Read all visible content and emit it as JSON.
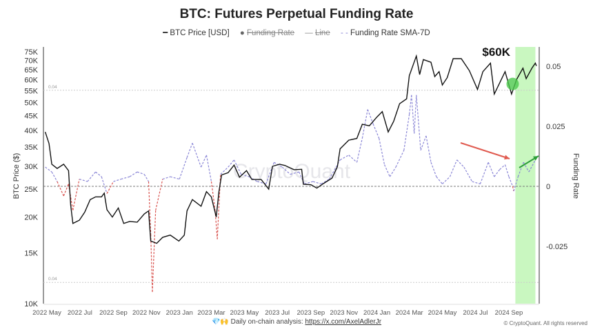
{
  "chart_data": {
    "type": "line",
    "title": "BTC: Futures Perpetual Funding Rate",
    "legend": [
      "BTC Price [USD]",
      "Funding Rate",
      "Line",
      "Funding Rate SMA-7D"
    ],
    "legend_disabled": [
      "Funding Rate",
      "Line"
    ],
    "legend_placement": "top-center",
    "ylabel_left": "BTC Price ($)",
    "ylabel_right": "Funding Rate",
    "y_left_scale": "log",
    "y_left_ticks": [
      "75K",
      "70K",
      "65K",
      "60K",
      "55K",
      "50K",
      "45K",
      "40K",
      "35K",
      "30K",
      "25K",
      "20K",
      "15K",
      "10K"
    ],
    "y_left_tick_values": [
      75000,
      70000,
      65000,
      60000,
      55000,
      50000,
      45000,
      40000,
      35000,
      30000,
      25000,
      20000,
      15000,
      10000
    ],
    "y_right_ticks": [
      "0.05",
      "0.025",
      "0",
      "-0.025"
    ],
    "y_right_tick_values": [
      0.05,
      0.025,
      0,
      -0.025
    ],
    "ref_lines": [
      {
        "label": "0.04",
        "value": 0.04
      },
      {
        "label": "0.04",
        "value": -0.04
      }
    ],
    "x_ticks": [
      "2022 May",
      "2022 Jul",
      "2022 Sep",
      "2022 Nov",
      "2023 Jan",
      "2023 Mar",
      "2023 May",
      "2023 Jul",
      "2023 Sep",
      "2023 Nov",
      "2024 Jan",
      "2024 Mar",
      "2024 May",
      "2024 Jul",
      "2024 Sep"
    ],
    "x_tick_dates": [
      "2022-05-01",
      "2022-07-01",
      "2022-09-01",
      "2022-11-01",
      "2023-01-01",
      "2023-03-01",
      "2023-05-01",
      "2023-07-01",
      "2023-09-01",
      "2023-11-01",
      "2024-01-01",
      "2024-03-01",
      "2024-05-01",
      "2024-07-01",
      "2024-09-01"
    ],
    "annotation": "$60K",
    "highlight_range": [
      "2024-09-13",
      "2024-10-20"
    ],
    "watermark": "CryptoQuant",
    "colors": {
      "price": "#111111",
      "sma_positive": "#8a86d6",
      "sma_negative": "#d9534f",
      "highlight": "#c9f7c0",
      "arrow_down": "#e05a4f",
      "arrow_up": "#2e9e3a",
      "marker": "#4cc94c"
    },
    "series": [
      {
        "name": "BTC Price [USD]",
        "points": [
          [
            "2022-04-28",
            39500
          ],
          [
            "2022-05-05",
            36000
          ],
          [
            "2022-05-10",
            30500
          ],
          [
            "2022-05-20",
            29500
          ],
          [
            "2022-06-01",
            30500
          ],
          [
            "2022-06-10",
            29000
          ],
          [
            "2022-06-14",
            22000
          ],
          [
            "2022-06-18",
            19000
          ],
          [
            "2022-06-30",
            19500
          ],
          [
            "2022-07-10",
            20800
          ],
          [
            "2022-07-20",
            23000
          ],
          [
            "2022-07-30",
            23500
          ],
          [
            "2022-08-10",
            23500
          ],
          [
            "2022-08-15",
            24200
          ],
          [
            "2022-08-20",
            21200
          ],
          [
            "2022-08-30",
            20000
          ],
          [
            "2022-09-10",
            21500
          ],
          [
            "2022-09-20",
            19000
          ],
          [
            "2022-10-01",
            19300
          ],
          [
            "2022-10-15",
            19200
          ],
          [
            "2022-10-28",
            20500
          ],
          [
            "2022-11-05",
            21000
          ],
          [
            "2022-11-09",
            16500
          ],
          [
            "2022-11-20",
            16200
          ],
          [
            "2022-12-01",
            17000
          ],
          [
            "2022-12-15",
            17300
          ],
          [
            "2022-12-31",
            16500
          ],
          [
            "2023-01-10",
            17300
          ],
          [
            "2023-01-15",
            21000
          ],
          [
            "2023-01-25",
            23000
          ],
          [
            "2023-02-10",
            21800
          ],
          [
            "2023-02-20",
            24500
          ],
          [
            "2023-03-01",
            23500
          ],
          [
            "2023-03-10",
            20000
          ],
          [
            "2023-03-15",
            24500
          ],
          [
            "2023-03-20",
            28000
          ],
          [
            "2023-04-01",
            28500
          ],
          [
            "2023-04-12",
            30300
          ],
          [
            "2023-04-22",
            27500
          ],
          [
            "2023-05-05",
            29000
          ],
          [
            "2023-05-15",
            27000
          ],
          [
            "2023-06-01",
            27000
          ],
          [
            "2023-06-15",
            25000
          ],
          [
            "2023-06-22",
            30000
          ],
          [
            "2023-07-05",
            30500
          ],
          [
            "2023-07-15",
            30200
          ],
          [
            "2023-08-01",
            29200
          ],
          [
            "2023-08-15",
            29300
          ],
          [
            "2023-08-18",
            26000
          ],
          [
            "2023-09-01",
            25900
          ],
          [
            "2023-09-12",
            25200
          ],
          [
            "2023-09-25",
            26200
          ],
          [
            "2023-10-10",
            27300
          ],
          [
            "2023-10-20",
            29900
          ],
          [
            "2023-10-25",
            34500
          ],
          [
            "2023-11-10",
            37000
          ],
          [
            "2023-11-25",
            37500
          ],
          [
            "2023-12-05",
            42000
          ],
          [
            "2023-12-18",
            41500
          ],
          [
            "2024-01-01",
            44500
          ],
          [
            "2024-01-11",
            46500
          ],
          [
            "2024-01-22",
            39500
          ],
          [
            "2024-02-01",
            43000
          ],
          [
            "2024-02-12",
            49500
          ],
          [
            "2024-02-25",
            51500
          ],
          [
            "2024-03-01",
            62000
          ],
          [
            "2024-03-14",
            72500
          ],
          [
            "2024-03-20",
            62500
          ],
          [
            "2024-03-27",
            70500
          ],
          [
            "2024-04-10",
            69000
          ],
          [
            "2024-04-17",
            61500
          ],
          [
            "2024-04-25",
            64000
          ],
          [
            "2024-05-01",
            57500
          ],
          [
            "2024-05-10",
            61000
          ],
          [
            "2024-05-21",
            71000
          ],
          [
            "2024-06-05",
            71000
          ],
          [
            "2024-06-20",
            64500
          ],
          [
            "2024-07-05",
            55500
          ],
          [
            "2024-07-15",
            64000
          ],
          [
            "2024-07-29",
            68500
          ],
          [
            "2024-08-05",
            53500
          ],
          [
            "2024-08-15",
            58500
          ],
          [
            "2024-08-25",
            64000
          ],
          [
            "2024-09-06",
            53500
          ],
          [
            "2024-09-15",
            60000
          ],
          [
            "2024-09-27",
            65800
          ],
          [
            "2024-10-03",
            60500
          ],
          [
            "2024-10-14",
            66000
          ],
          [
            "2024-10-20",
            68500
          ],
          [
            "2024-10-22",
            67000
          ]
        ]
      },
      {
        "name": "Funding Rate SMA-7D",
        "points": [
          [
            "2022-04-28",
            0.008
          ],
          [
            "2022-05-10",
            0.006
          ],
          [
            "2022-05-20",
            0.002
          ],
          [
            "2022-06-01",
            -0.004
          ],
          [
            "2022-06-10",
            0.001
          ],
          [
            "2022-06-18",
            -0.01
          ],
          [
            "2022-06-30",
            0.003
          ],
          [
            "2022-07-15",
            0.002
          ],
          [
            "2022-07-30",
            0.006
          ],
          [
            "2022-08-10",
            0.004
          ],
          [
            "2022-08-20",
            -0.003
          ],
          [
            "2022-09-01",
            0.002
          ],
          [
            "2022-09-15",
            0.003
          ],
          [
            "2022-10-01",
            0.004
          ],
          [
            "2022-10-15",
            0.006
          ],
          [
            "2022-10-28",
            0.005
          ],
          [
            "2022-11-05",
            0.002
          ],
          [
            "2022-11-09",
            -0.02
          ],
          [
            "2022-11-12",
            -0.044
          ],
          [
            "2022-11-18",
            -0.01
          ],
          [
            "2022-12-01",
            0.003
          ],
          [
            "2022-12-15",
            0.004
          ],
          [
            "2023-01-01",
            0.003
          ],
          [
            "2023-01-15",
            0.012
          ],
          [
            "2023-01-25",
            0.018
          ],
          [
            "2023-02-10",
            0.008
          ],
          [
            "2023-02-20",
            0.013
          ],
          [
            "2023-03-01",
            0.002
          ],
          [
            "2023-03-08",
            -0.01
          ],
          [
            "2023-03-12",
            -0.022
          ],
          [
            "2023-03-18",
            0.005
          ],
          [
            "2023-04-01",
            0.008
          ],
          [
            "2023-04-12",
            0.011
          ],
          [
            "2023-04-25",
            0.005
          ],
          [
            "2023-05-10",
            0.004
          ],
          [
            "2023-05-25",
            0.002
          ],
          [
            "2023-06-10",
            0.001
          ],
          [
            "2023-06-25",
            0.01
          ],
          [
            "2023-07-10",
            0.008
          ],
          [
            "2023-07-25",
            0.005
          ],
          [
            "2023-08-10",
            0.006
          ],
          [
            "2023-08-20",
            0.001
          ],
          [
            "2023-09-05",
            0.002
          ],
          [
            "2023-09-20",
            0.001
          ],
          [
            "2023-10-05",
            0.003
          ],
          [
            "2023-10-25",
            0.011
          ],
          [
            "2023-11-10",
            0.013
          ],
          [
            "2023-11-25",
            0.01
          ],
          [
            "2023-12-05",
            0.02
          ],
          [
            "2023-12-15",
            0.032
          ],
          [
            "2023-12-25",
            0.026
          ],
          [
            "2024-01-05",
            0.02
          ],
          [
            "2024-01-15",
            0.009
          ],
          [
            "2024-01-25",
            0.004
          ],
          [
            "2024-02-05",
            0.008
          ],
          [
            "2024-02-20",
            0.015
          ],
          [
            "2024-03-01",
            0.03
          ],
          [
            "2024-03-05",
            0.038
          ],
          [
            "2024-03-10",
            0.022
          ],
          [
            "2024-03-14",
            0.038
          ],
          [
            "2024-03-22",
            0.015
          ],
          [
            "2024-04-01",
            0.021
          ],
          [
            "2024-04-10",
            0.01
          ],
          [
            "2024-04-20",
            0.004
          ],
          [
            "2024-05-01",
            0.001
          ],
          [
            "2024-05-15",
            0.004
          ],
          [
            "2024-05-28",
            0.011
          ],
          [
            "2024-06-10",
            0.008
          ],
          [
            "2024-06-25",
            0.002
          ],
          [
            "2024-07-10",
            0.001
          ],
          [
            "2024-07-25",
            0.01
          ],
          [
            "2024-08-05",
            0.004
          ],
          [
            "2024-08-15",
            0.007
          ],
          [
            "2024-08-25",
            0.009
          ],
          [
            "2024-09-01",
            0.004
          ],
          [
            "2024-09-08",
            0.0
          ],
          [
            "2024-09-10",
            -0.002
          ],
          [
            "2024-09-18",
            0.004
          ],
          [
            "2024-09-28",
            0.01
          ],
          [
            "2024-10-08",
            0.006
          ],
          [
            "2024-10-20",
            0.011
          ]
        ]
      }
    ]
  },
  "footer": {
    "text": "Daily on-chain analysis: ",
    "link": "https://x.com/AxelAdlerJr",
    "emoji": "💎🙌",
    "copyright": "© CryptoQuant. All rights reserved"
  }
}
